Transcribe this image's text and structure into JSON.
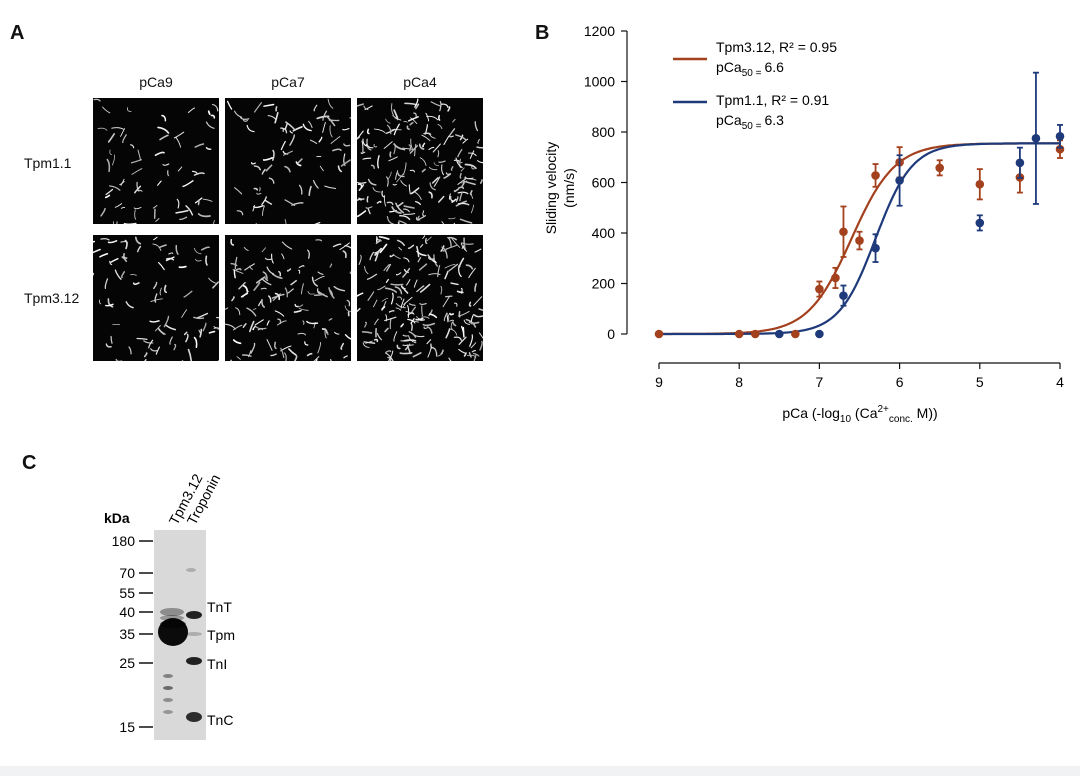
{
  "panel_a": {
    "letter": "A",
    "columns": [
      "pCa9",
      "pCa7",
      "pCa4"
    ],
    "rows": [
      "Tpm1.1",
      "Tpm3.12"
    ],
    "filament_density": [
      [
        0.25,
        0.3,
        0.85
      ],
      [
        0.35,
        0.55,
        0.95
      ]
    ]
  },
  "panel_b": {
    "letter": "B",
    "legend": [
      {
        "name": "Tpm3.12, R² = 0.95",
        "pca50_prefix": "pCa",
        "pca50_sub": "50 =",
        "pca50_value": "6.6"
      },
      {
        "name": "Tpm1.1, R² = 0.91",
        "pca50_prefix": "pCa",
        "pca50_sub": "50 =",
        "pca50_value": "6.3"
      }
    ],
    "ylabel_line1": "Sliding velocity",
    "ylabel_line2": "(nm/s)",
    "xlabel_parts": {
      "a": "pCa (-log",
      "sub1": "10",
      "b": " (Ca",
      "sup": "2+",
      "sub2": "conc.",
      "c": " M))"
    }
  },
  "chart_data": {
    "type": "scatter",
    "x": "pCa",
    "xlim": [
      9,
      4
    ],
    "ylim": [
      0,
      1200
    ],
    "xticks": [
      9,
      8,
      7,
      6,
      5,
      4
    ],
    "yticks": [
      0,
      200,
      400,
      600,
      800,
      1000,
      1200
    ],
    "series": [
      {
        "name": "Tpm3.12",
        "color": "#a3401d",
        "fit": {
          "vmax": 755,
          "pca50": 6.6,
          "hill": 1.6
        },
        "points": [
          {
            "x": 9.0,
            "y": 0,
            "err": 0
          },
          {
            "x": 8.0,
            "y": 0,
            "err": 0
          },
          {
            "x": 7.8,
            "y": 0,
            "err": 0
          },
          {
            "x": 7.3,
            "y": 0,
            "err": 0
          },
          {
            "x": 7.0,
            "y": 178,
            "err": 30
          },
          {
            "x": 6.8,
            "y": 222,
            "err": 40
          },
          {
            "x": 6.7,
            "y": 405,
            "err": 100
          },
          {
            "x": 6.5,
            "y": 370,
            "err": 35
          },
          {
            "x": 6.3,
            "y": 628,
            "err": 45
          },
          {
            "x": 6.0,
            "y": 680,
            "err": 60
          },
          {
            "x": 5.5,
            "y": 658,
            "err": 30
          },
          {
            "x": 5.0,
            "y": 593,
            "err": 60
          },
          {
            "x": 4.5,
            "y": 620,
            "err": 60
          },
          {
            "x": 4.0,
            "y": 732,
            "err": 35
          }
        ]
      },
      {
        "name": "Tpm1.1",
        "color": "#1e3a7a",
        "fit": {
          "vmax": 755,
          "pca50": 6.3,
          "hill": 1.9
        },
        "points": [
          {
            "x": 7.5,
            "y": 0,
            "err": 0
          },
          {
            "x": 7.0,
            "y": 0,
            "err": 0
          },
          {
            "x": 6.7,
            "y": 152,
            "err": 40
          },
          {
            "x": 6.3,
            "y": 340,
            "err": 55
          },
          {
            "x": 6.0,
            "y": 608,
            "err": 100
          },
          {
            "x": 5.0,
            "y": 440,
            "err": 30
          },
          {
            "x": 4.5,
            "y": 678,
            "err": 60
          },
          {
            "x": 4.3,
            "y": 775,
            "err": 260
          },
          {
            "x": 4.0,
            "y": 783,
            "err": 45
          }
        ]
      }
    ]
  },
  "panel_c": {
    "letter": "C",
    "unit_label": "kDa",
    "lanes": [
      "Tpm3.12",
      "Troponin"
    ],
    "marker_kda": [
      "180",
      "70",
      "55",
      "40",
      "35",
      "25",
      "15"
    ],
    "band_labels": [
      "TnT",
      "Tpm",
      "TnI",
      "TnC"
    ]
  }
}
